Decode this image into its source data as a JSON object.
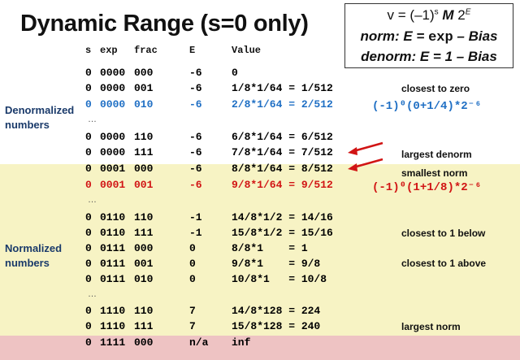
{
  "title": "Dynamic Range (s=0 only)",
  "formula_box": {
    "line1_prefix": "v = (–1)",
    "line1_s": "s",
    "line1_M": "M",
    "line1_base": "2",
    "line1_E": "E",
    "line2_left": "norm: E = ",
    "line2_code": "exp",
    "line2_right": " – Bias",
    "line3": "denorm: E = 1 – Bias"
  },
  "headers": {
    "s": "s",
    "exp": "exp",
    "frac": "frac",
    "E": "E",
    "value": "Value"
  },
  "section_labels": {
    "denormalized": "Denormalized numbers",
    "normalized": "Normalized numbers"
  },
  "rows": [
    {
      "s": "0",
      "exp": "0000",
      "frac": "000",
      "E": "-6",
      "value": "0"
    },
    {
      "s": "0",
      "exp": "0000",
      "frac": "001",
      "E": "-6",
      "value": "1/8*1/64 = 1/512"
    },
    {
      "s": "0",
      "exp": "0000",
      "frac": "010",
      "E": "-6",
      "value": "2/8*1/64 = 2/512"
    },
    {
      "s": "0",
      "exp": "0000",
      "frac": "110",
      "E": "-6",
      "value": "6/8*1/64 = 6/512"
    },
    {
      "s": "0",
      "exp": "0000",
      "frac": "111",
      "E": "-6",
      "value": "7/8*1/64 = 7/512"
    },
    {
      "s": "0",
      "exp": "0001",
      "frac": "000",
      "E": "-6",
      "value": "8/8*1/64 = 8/512"
    },
    {
      "s": "0",
      "exp": "0001",
      "frac": "001",
      "E": "-6",
      "value": "9/8*1/64 = 9/512"
    },
    {
      "s": "0",
      "exp": "0110",
      "frac": "110",
      "E": "-1",
      "value": "14/8*1/2 = 14/16"
    },
    {
      "s": "0",
      "exp": "0110",
      "frac": "111",
      "E": "-1",
      "value": "15/8*1/2 = 15/16"
    },
    {
      "s": "0",
      "exp": "0111",
      "frac": "000",
      "E": "0",
      "value": "8/8*1    = 1"
    },
    {
      "s": "0",
      "exp": "0111",
      "frac": "001",
      "E": "0",
      "value": "9/8*1    = 9/8"
    },
    {
      "s": "0",
      "exp": "0111",
      "frac": "010",
      "E": "0",
      "value": "10/8*1   = 10/8"
    },
    {
      "s": "0",
      "exp": "1110",
      "frac": "110",
      "E": "7",
      "value": "14/8*128 = 224"
    },
    {
      "s": "0",
      "exp": "1110",
      "frac": "111",
      "E": "7",
      "value": "15/8*128 = 240"
    },
    {
      "s": "0",
      "exp": "1111",
      "frac": "000",
      "E": "n/a",
      "value": "inf"
    }
  ],
  "ellipsis": "…",
  "notes": {
    "closest_to_zero": "closest to zero",
    "largest_denorm": "largest denorm",
    "smallest_norm": "smallest norm",
    "closest_below_1": "closest to 1 below",
    "closest_above_1": "closest to 1 above",
    "largest_norm": "largest norm"
  },
  "formula_notes": {
    "blue": "(-1)⁰(0+1/4)*2⁻⁶",
    "red": "(-1)⁰(1+1/8)*2⁻⁶"
  },
  "colors": {
    "blue": "#1f6fc4",
    "red": "#d11414",
    "normal_band": "#f7f3c4",
    "inf_band": "#eec3c3"
  }
}
